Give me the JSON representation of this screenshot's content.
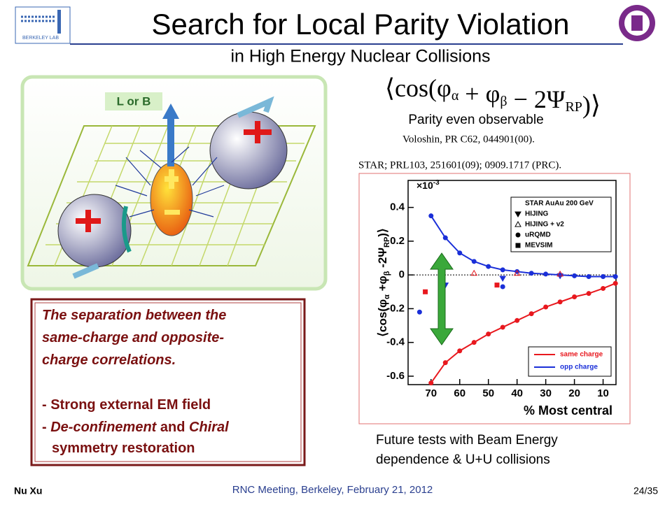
{
  "header": {
    "title": "Search for Local Parity Violation",
    "subtitle": "in High Energy Nuclear Collisions"
  },
  "logos": {
    "left": "BERKELEY LAB"
  },
  "diagram": {
    "field_label": "L or B"
  },
  "formula": [
    "cos(",
    "φ",
    "α",
    " + ",
    "φ",
    "β",
    " − 2Ψ",
    "RP",
    ")"
  ],
  "observable": "Parity even observable",
  "references": [
    "Voloshin, PR C62, 044901(00).",
    "STAR; PRL103, 251601(09); 0909.1717 (PRC)."
  ],
  "chart_data": {
    "type": "line",
    "xlabel": "% Most central",
    "ylabel": [
      "⟨cos(φ",
      "α",
      " +φ",
      "β",
      " -2Ψ",
      "RP",
      ")⟩"
    ],
    "multiplier": [
      "×10",
      "-3"
    ],
    "legend_title": "STAR AuAu 200 GeV",
    "xlim": [
      78,
      5.5
    ],
    "xticks": [
      70,
      60,
      50,
      40,
      30,
      20,
      10
    ],
    "ylim": [
      -0.65,
      0.56
    ],
    "yticks": [
      -0.6,
      -0.4,
      -0.2,
      0,
      0.2,
      0.4
    ],
    "series": [
      {
        "name": "same charge",
        "color": "#e8181e",
        "marker": "circle",
        "x": [
          70,
          65,
          60,
          55,
          50,
          45,
          40,
          35,
          30,
          25,
          20,
          15,
          10,
          5.7
        ],
        "values": [
          -0.64,
          -0.52,
          -0.45,
          -0.4,
          -0.35,
          -0.31,
          -0.27,
          -0.23,
          -0.19,
          -0.16,
          -0.13,
          -0.11,
          -0.08,
          -0.05
        ]
      },
      {
        "name": "opp charge",
        "color": "#1a2fd8",
        "marker": "circle",
        "x": [
          70,
          65,
          60,
          55,
          50,
          45,
          40,
          35,
          30,
          25,
          20,
          15,
          10,
          5.7
        ],
        "values": [
          0.35,
          0.22,
          0.13,
          0.08,
          0.05,
          0.03,
          0.02,
          0.01,
          0.005,
          0,
          -0.005,
          -0.01,
          -0.01,
          -0.01
        ]
      },
      {
        "name": "HIJING",
        "color": "#1a2fd8",
        "marker": "triangle-down",
        "x": [
          65,
          45,
          25
        ],
        "values": [
          -0.06,
          -0.02,
          -0.005
        ]
      },
      {
        "name": "HIJING + v2",
        "color": "#e8181e",
        "marker": "triangle-open",
        "x": [
          55,
          40,
          25
        ],
        "values": [
          0.01,
          0.01,
          0.005
        ]
      },
      {
        "name": "uRQMD",
        "color": "#1a2fd8",
        "marker": "circle",
        "x": [
          74,
          45
        ],
        "values": [
          -0.22,
          -0.07
        ]
      },
      {
        "name": "MEVSIM",
        "color": "#e8181e",
        "marker": "square",
        "x": [
          72,
          47
        ],
        "values": [
          -0.1,
          -0.06
        ]
      }
    ]
  },
  "text_box": {
    "lines": [
      "The separation between the",
      "same-charge and opposite-",
      "charge correlations.",
      "- Strong external EM field"
    ],
    "line_parts": [
      "- ",
      "De-confinement",
      " and ",
      "Chiral"
    ],
    "last_line": "symmetry restoration"
  },
  "future": [
    "Future tests with Beam Energy",
    "dependence & U+U collisions"
  ],
  "footer": {
    "author": "Nu Xu",
    "meeting": "RNC Meeting, Berkeley, February 21, 2012",
    "page": "24/35"
  }
}
